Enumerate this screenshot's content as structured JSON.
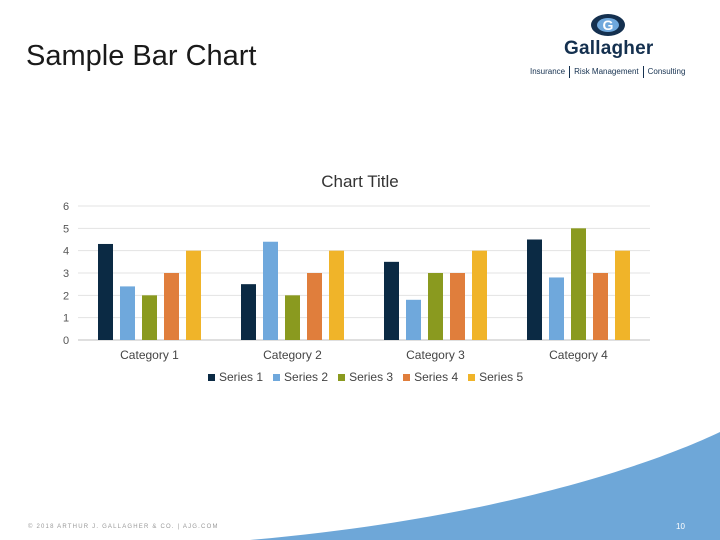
{
  "slide": {
    "title": "Sample Bar Chart",
    "footer": "© 2018 ARTHUR J. GALLAGHER & CO. | AJG.COM",
    "page_number": "10"
  },
  "logo": {
    "name": "Gallagher",
    "tagline": [
      "Insurance",
      "Risk Management",
      "Consulting"
    ]
  },
  "chart_data": {
    "type": "bar",
    "title": "Chart Title",
    "categories": [
      "Category 1",
      "Category 2",
      "Category 3",
      "Category 4"
    ],
    "series": [
      {
        "name": "Series 1",
        "color": "#0b2a44",
        "values": [
          4.3,
          2.5,
          3.5,
          4.5
        ]
      },
      {
        "name": "Series 2",
        "color": "#6fa8dc",
        "values": [
          2.4,
          4.4,
          1.8,
          2.8
        ]
      },
      {
        "name": "Series 3",
        "color": "#8a9a1f",
        "values": [
          2.0,
          2.0,
          3.0,
          5.0
        ]
      },
      {
        "name": "Series 4",
        "color": "#e07e3c",
        "values": [
          3.0,
          3.0,
          3.0,
          3.0
        ]
      },
      {
        "name": "Series 5",
        "color": "#f0b429",
        "values": [
          4.0,
          4.0,
          4.0,
          4.0
        ]
      }
    ],
    "ylim": [
      0,
      6
    ],
    "yticks": [
      "0",
      "1",
      "2",
      "3",
      "4",
      "5",
      "6"
    ],
    "grid": true,
    "legend": "bottom"
  }
}
